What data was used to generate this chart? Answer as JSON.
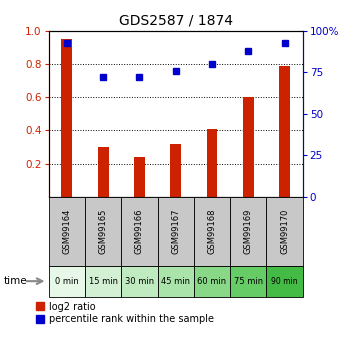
{
  "title": "GDS2587 / 1874",
  "samples": [
    "GSM99164",
    "GSM99165",
    "GSM99166",
    "GSM99167",
    "GSM99168",
    "GSM99169",
    "GSM99170"
  ],
  "time_labels": [
    "0 min",
    "15 min",
    "30 min",
    "45 min",
    "60 min",
    "75 min",
    "90 min"
  ],
  "time_colors": [
    "#e8f8e8",
    "#d4f0d4",
    "#c0eac0",
    "#aae4aa",
    "#88d888",
    "#66cc66",
    "#44bb44"
  ],
  "log2_ratio": [
    0.95,
    0.3,
    0.24,
    0.32,
    0.41,
    0.6,
    0.79
  ],
  "percentile_rank": [
    93,
    72,
    72,
    76,
    80,
    88,
    93
  ],
  "bar_color": "#cc2200",
  "dot_color": "#0000cc",
  "left_yticks": [
    0.2,
    0.4,
    0.6,
    0.8,
    1.0
  ],
  "right_yticks": [
    0,
    25,
    50,
    75,
    100
  ],
  "header_bg": "#c8c8c8",
  "legend_texts": [
    "log2 ratio",
    "percentile rank within the sample"
  ],
  "bar_width": 0.3
}
